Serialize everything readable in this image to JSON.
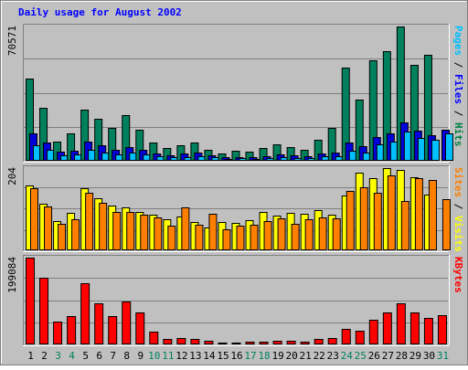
{
  "chart_data": {
    "type": "bar",
    "title": "Daily usage for August 2002",
    "categories": [
      "1",
      "2",
      "3",
      "4",
      "5",
      "6",
      "7",
      "8",
      "9",
      "10",
      "11",
      "12",
      "13",
      "14",
      "15",
      "16",
      "17",
      "18",
      "19",
      "20",
      "21",
      "22",
      "23",
      "24",
      "25",
      "26",
      "27",
      "28",
      "29",
      "30",
      "31"
    ],
    "weekend_days": [
      "3",
      "4",
      "10",
      "11",
      "17",
      "18",
      "24",
      "25",
      "31"
    ],
    "panels": [
      {
        "id": "hits",
        "ymax_label": "70571",
        "ymax": 70571,
        "right_labels": [
          {
            "text": "Pages",
            "color": "#00c0ff"
          },
          {
            "text": "Files",
            "color": "#0000ff"
          },
          {
            "text": "Hits",
            "color": "#008040"
          }
        ],
        "separator": " / ",
        "series": [
          {
            "name": "Hits",
            "color": "#00805c",
            "values": [
              43200,
              27800,
              10000,
              14500,
              26800,
              22200,
              17300,
              23800,
              16300,
              9800,
              6500,
              8200,
              9400,
              6000,
              3700,
              5300,
              4600,
              6700,
              8800,
              7000,
              5600,
              11000,
              17500,
              49000,
              32200,
              53000,
              57800,
              70571,
              50500,
              55700,
              0
            ]
          },
          {
            "name": "Files",
            "color": "#0000d8",
            "values": [
              14200,
              9600,
              4700,
              5400,
              9900,
              8000,
              5700,
              7000,
              5700,
              3800,
              2700,
              3700,
              4100,
              3000,
              1900,
              2100,
              2100,
              2500,
              3200,
              2700,
              2300,
              4000,
              4200,
              9400,
              7500,
              12600,
              14400,
              20000,
              16000,
              13300,
              16100
            ]
          },
          {
            "name": "Pages",
            "color": "#00c0ff",
            "values": [
              8300,
              5600,
              3100,
              3400,
              6000,
              4500,
              3400,
              4400,
              3600,
              2400,
              1700,
              2100,
              2300,
              1800,
              1200,
              1300,
              1200,
              1400,
              1700,
              1400,
              1300,
              2200,
              2500,
              5500,
              4500,
              8800,
              10000,
              15600,
              12100,
              11100,
              14300
            ]
          }
        ]
      },
      {
        "id": "visits",
        "ymax_label": "204",
        "ymax": 204,
        "right_labels": [
          {
            "text": "Sites",
            "color": "#ff8000"
          },
          {
            "text": "Visits",
            "color": "#ffff00"
          }
        ],
        "separator": " / ",
        "series": [
          {
            "name": "Visits",
            "color": "#ffff00",
            "values": [
              162,
              116,
              73,
              92,
              155,
              130,
              110,
              106,
              96,
              88,
              76,
              84,
              70,
              56,
              71,
              67,
              75,
              95,
              86,
              92,
              90,
              99,
              89,
              137,
              192,
              180,
              204,
              200,
              182,
              138,
              0
            ]
          },
          {
            "name": "Sites",
            "color": "#ff8000",
            "values": [
              155,
              109,
              65,
              78,
              142,
              118,
              95,
              95,
              88,
              82,
              62,
              107,
              64,
              90,
              53,
              62,
              64,
              72,
              80,
              65,
              76,
              81,
              80,
              148,
              156,
              143,
              186,
              123,
              180,
              175,
              126
            ]
          }
        ]
      },
      {
        "id": "kbytes",
        "ymax_label": "199084",
        "ymax": 199084,
        "right_labels": [
          {
            "text": "KBytes",
            "color": "#ff0000"
          }
        ],
        "separator": "",
        "series": [
          {
            "name": "KBytes",
            "color": "#ff0000",
            "values": [
              199084,
              153000,
              51600,
              64300,
              139800,
              93300,
              66000,
              98200,
              73000,
              29500,
              12700,
              15600,
              13100,
              9200,
              3800,
              4900,
              6800,
              7000,
              8700,
              8300,
              7300,
              12100,
              14500,
              35100,
              32200,
              57300,
              72700,
              93300,
              72700,
              60000,
              67700
            ]
          }
        ]
      }
    ]
  }
}
